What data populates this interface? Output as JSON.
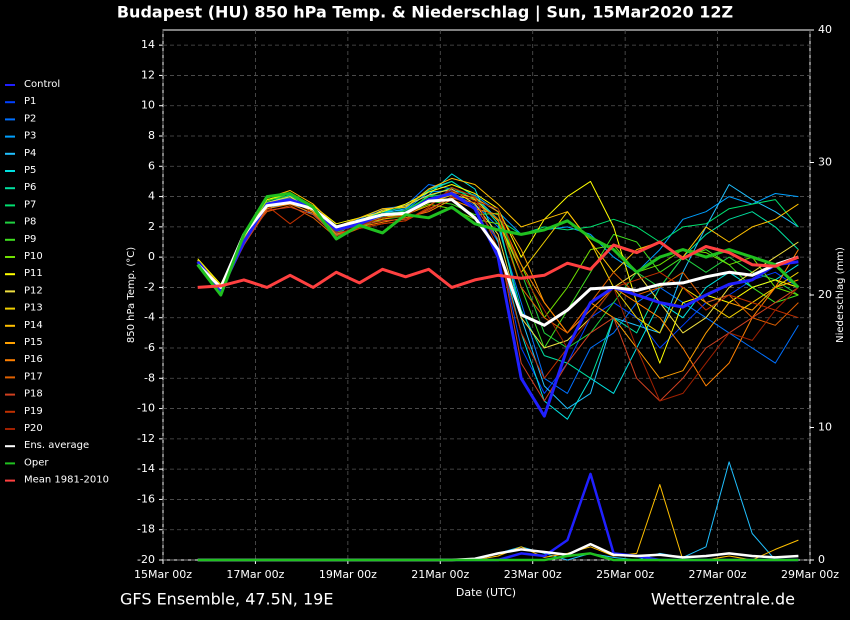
{
  "chart_data": {
    "type": "line",
    "title": "Budapest  (HU)  850 hPa Temp. & Niederschlag | Sun, 15Mar2020 12Z",
    "footer_left": "GFS Ensemble, 47.5N, 19E",
    "footer_right": "Wetterzentrale.de",
    "xlabel": "Date (UTC)",
    "ylabel": "850 hPa Temp. (°C)",
    "y2label": "Niederschlag (mm)",
    "grid": true,
    "xlim": [
      0,
      14
    ],
    "xticks": [
      {
        "value": 0,
        "label": "15Mar 00z"
      },
      {
        "value": 2,
        "label": "17Mar 00z"
      },
      {
        "value": 4,
        "label": "19Mar 00z"
      },
      {
        "value": 6,
        "label": "21Mar 00z"
      },
      {
        "value": 8,
        "label": "23Mar 00z"
      },
      {
        "value": 10,
        "label": "25Mar 00z"
      },
      {
        "value": 12,
        "label": "27Mar 00z"
      },
      {
        "value": 14,
        "label": "29Mar 00z"
      }
    ],
    "ylim": [
      -20,
      15
    ],
    "yticks": [
      -20,
      -18,
      -16,
      -14,
      -12,
      -10,
      -8,
      -6,
      -4,
      -2,
      0,
      2,
      4,
      6,
      8,
      10,
      12,
      14
    ],
    "y2lim": [
      0,
      40
    ],
    "y2ticks": [
      0,
      10,
      20,
      30,
      40
    ],
    "x": [
      0.75,
      1.25,
      1.75,
      2.25,
      2.75,
      3.25,
      3.75,
      4.25,
      4.75,
      5.25,
      5.75,
      6.25,
      6.75,
      7.25,
      7.75,
      8.25,
      8.75,
      9.25,
      9.75,
      10.25,
      10.75,
      11.25,
      11.75,
      12.25,
      12.75,
      13.25,
      13.75
    ],
    "series": [
      {
        "name": "Control",
        "color": "#2020ff",
        "bold": true,
        "values": [
          -0.3,
          -2.2,
          1,
          3.5,
          3.8,
          3.2,
          1.8,
          2.2,
          2.8,
          2.9,
          3.8,
          4.2,
          3.2,
          0,
          -8,
          -10.5,
          -6,
          -3,
          -2,
          -2.5,
          -3,
          -3.3,
          -2.5,
          -1.8,
          -1.5,
          -0.5,
          -0.3
        ],
        "precip": [
          0,
          0,
          0,
          0,
          0,
          0,
          0,
          0,
          0,
          0,
          0,
          0,
          0,
          0,
          0.5,
          0.3,
          1.5,
          6.5,
          0.5,
          0.3,
          0,
          0,
          0,
          0,
          0,
          0,
          0
        ]
      },
      {
        "name": "P1",
        "color": "#0040ff",
        "values": [
          -0.4,
          -2,
          1.2,
          3.6,
          3.9,
          3,
          1.6,
          2.4,
          2.7,
          3,
          3.6,
          4.3,
          3.4,
          1,
          -6,
          -9,
          -7,
          -4,
          -3,
          -4,
          -6,
          -4.5,
          -3,
          -2.5,
          -1.5,
          -1,
          -2
        ]
      },
      {
        "name": "P2",
        "color": "#0070ff",
        "values": [
          -0.2,
          -2.1,
          0.8,
          3.4,
          4,
          3.1,
          1.5,
          2.5,
          3.2,
          3.4,
          4.8,
          4.5,
          3.5,
          2,
          -3,
          -8,
          -9,
          -6,
          -5,
          -3,
          -2,
          -3,
          -4,
          -5,
          -6,
          -7,
          -4.5
        ]
      },
      {
        "name": "P3",
        "color": "#00a0ff",
        "values": [
          -0.3,
          -2.3,
          1.1,
          3.2,
          3.6,
          2.8,
          1.4,
          2.6,
          3,
          3.1,
          4.3,
          4.4,
          4.1,
          3,
          1.5,
          1.8,
          2,
          1.5,
          0,
          -1,
          0.5,
          2.5,
          3,
          4,
          3.5,
          4.2,
          4
        ]
      },
      {
        "name": "P4",
        "color": "#20c0ff",
        "values": [
          -0.5,
          -2,
          0.9,
          3.5,
          3.7,
          3.3,
          1.7,
          2.1,
          2.9,
          3.2,
          4.5,
          5,
          4,
          2.5,
          -4,
          -8.5,
          -10,
          -9,
          -4,
          -4.5,
          -5,
          -1,
          2,
          4.8,
          3.8,
          3,
          2
        ],
        "precip": [
          0,
          0,
          0,
          0,
          0,
          0,
          0,
          0,
          0,
          0,
          0,
          0,
          0,
          0.5,
          1,
          0.5,
          0,
          0.5,
          0.2,
          0,
          0.5,
          0.2,
          1,
          7.4,
          2,
          0,
          0
        ]
      },
      {
        "name": "P5",
        "color": "#00e0e0",
        "values": [
          -0.2,
          -1.9,
          1,
          3.3,
          3.8,
          3.1,
          1.6,
          2.3,
          2.8,
          2.9,
          4.1,
          5.5,
          4.5,
          1,
          -5,
          -9.5,
          -10.7,
          -8,
          -9,
          -6,
          -3,
          -4,
          -2,
          -1,
          -2,
          -1.5,
          -0.5
        ]
      },
      {
        "name": "P6",
        "color": "#00e0a0",
        "values": [
          -0.4,
          -2.2,
          1.3,
          3.6,
          4.1,
          3.2,
          2,
          2.4,
          3,
          3.3,
          4.4,
          5,
          4,
          2.2,
          -3.5,
          -6.5,
          -7,
          -8,
          -4,
          -5,
          -2,
          0,
          1.5,
          2.5,
          3,
          2,
          0.5
        ]
      },
      {
        "name": "P7",
        "color": "#00e070",
        "values": [
          -0.3,
          -2,
          1,
          3.5,
          3.8,
          3,
          1.6,
          2.3,
          2.9,
          3,
          4,
          4.6,
          3.8,
          2.5,
          1.5,
          2,
          1.8,
          2,
          2.5,
          2,
          1,
          2,
          2.2,
          3.2,
          3.5,
          3.8,
          2
        ]
      },
      {
        "name": "P8",
        "color": "#20d040",
        "values": [
          -0.2,
          -2.4,
          1,
          3.8,
          4,
          3.4,
          1.2,
          2,
          2.7,
          3.1,
          4,
          4.2,
          3.2,
          2.8,
          -1,
          -5,
          -6,
          -5,
          -3,
          -1,
          -2,
          0,
          -1,
          0,
          -1,
          -1.5,
          -2.5
        ]
      },
      {
        "name": "P9",
        "color": "#40e020",
        "values": [
          -0.3,
          -2.3,
          1.1,
          3.7,
          4.2,
          3.3,
          1.4,
          2,
          2.5,
          2.7,
          3.7,
          3.5,
          2.8,
          2.9,
          -2,
          -6,
          -3.5,
          -1,
          1.5,
          1,
          -1,
          0,
          0.5,
          -0.5,
          -2,
          -3,
          -2.5
        ]
      },
      {
        "name": "P10",
        "color": "#70e000",
        "values": [
          -0.4,
          -2.1,
          1.2,
          3.5,
          3.9,
          3.2,
          1.8,
          2.2,
          2.6,
          2.8,
          3.5,
          3.2,
          2.5,
          2.2,
          -0.5,
          -4,
          -2,
          0.5,
          0.8,
          -1,
          -0.5,
          0.5,
          0.3,
          -0.5,
          0,
          -2,
          -2.5
        ]
      },
      {
        "name": "P11",
        "color": "#ffff00",
        "values": [
          -0.1,
          -1.8,
          1.4,
          3.8,
          4.2,
          3.4,
          2.2,
          2.6,
          3,
          3.5,
          4.3,
          4.8,
          4.2,
          3.2,
          0,
          2.5,
          4,
          5,
          2,
          -3,
          -7,
          -3,
          -2.5,
          -3,
          -2,
          -1.5,
          -2
        ]
      },
      {
        "name": "P12",
        "color": "#f0e040",
        "values": [
          -0.2,
          -2,
          1.1,
          3.6,
          4,
          3,
          1.8,
          2.4,
          3.1,
          3.4,
          4.1,
          4.5,
          3.5,
          1.5,
          -4,
          -6,
          -5.5,
          -4,
          -2,
          -1,
          -3,
          -5,
          -4,
          -2,
          -1,
          0,
          1
        ]
      },
      {
        "name": "P13",
        "color": "#f0d000",
        "values": [
          -0.3,
          -2.1,
          1,
          3.3,
          3.6,
          3.1,
          1.9,
          2.3,
          2.6,
          2.9,
          3.6,
          4.1,
          3.8,
          2.4,
          -1,
          1,
          3,
          1,
          -2,
          -4,
          -5,
          -2,
          -3,
          -4,
          -3,
          -2,
          -1
        ]
      },
      {
        "name": "P14",
        "color": "#ffc000",
        "values": [
          -0.2,
          -1.9,
          1.2,
          3.9,
          4.4,
          3.5,
          2,
          2.6,
          3.2,
          3.3,
          4.5,
          5.2,
          4.8,
          3.5,
          2,
          2.5,
          3,
          1,
          -1,
          0.5,
          1,
          0,
          2,
          1,
          2,
          2.5,
          3.5
        ],
        "precip": [
          0,
          0,
          0,
          0,
          0,
          0,
          0,
          0,
          0,
          0,
          0,
          0,
          0,
          0.3,
          1,
          0.2,
          0.5,
          1,
          0.3,
          0.5,
          5.7,
          0,
          0,
          0.3,
          0,
          0.8,
          1.5
        ]
      },
      {
        "name": "P15",
        "color": "#ffa000",
        "values": [
          -0.3,
          -2,
          0.9,
          3.4,
          3.7,
          3,
          1.7,
          2.2,
          2.5,
          2.8,
          3.4,
          4.3,
          3.9,
          3,
          0.5,
          -3,
          -5,
          -3,
          -4,
          -6,
          -8,
          -7.5,
          -5,
          -3,
          -3.5,
          -2,
          -1.5
        ]
      },
      {
        "name": "P16",
        "color": "#ff8000",
        "values": [
          -0.4,
          -2.2,
          1,
          3.2,
          3.5,
          2.9,
          1.5,
          2,
          2.3,
          2.6,
          3,
          3.8,
          3.2,
          2.8,
          -0.5,
          -3,
          -5,
          -3.5,
          -2,
          -3,
          -4,
          -6,
          -8.5,
          -7,
          -4,
          -2,
          0.5
        ]
      },
      {
        "name": "P17",
        "color": "#e06000",
        "values": [
          -0.3,
          -2,
          1.2,
          3,
          3.4,
          2.6,
          1.3,
          1.9,
          2.2,
          2.4,
          3.2,
          3.9,
          3.6,
          2.5,
          -2,
          -4,
          -5,
          -3,
          -1,
          -2.5,
          -2,
          -1,
          -3,
          -2.5,
          -4,
          -4.5,
          -3
        ]
      },
      {
        "name": "P18",
        "color": "#d04020",
        "values": [
          -0.5,
          -2.3,
          0.8,
          3.1,
          3.3,
          2.8,
          1.4,
          2.1,
          2.4,
          2.5,
          3.1,
          4,
          3.3,
          1.2,
          -7,
          -9.5,
          -7,
          -5,
          -4,
          -8,
          -9.5,
          -8,
          -6,
          -5,
          -4,
          -3,
          -2
        ]
      },
      {
        "name": "P19",
        "color": "#c03000",
        "values": [
          -0.4,
          -2.1,
          1,
          3.4,
          2.2,
          3.3,
          1.6,
          1.9,
          2.2,
          2.4,
          3.3,
          4.6,
          4,
          0.5,
          -5,
          -8,
          -6,
          -3,
          -2,
          -1.5,
          -1,
          -2,
          -3.5,
          -2.5,
          -3,
          -3.5,
          -4
        ]
      },
      {
        "name": "P20",
        "color": "#a02000",
        "values": [
          -0.3,
          -2.2,
          1.1,
          3.3,
          3.7,
          3.2,
          1.7,
          2.1,
          2.6,
          2.7,
          3.7,
          4.4,
          3.7,
          3.2,
          -1,
          -3.5,
          -6,
          -4,
          -2,
          -6,
          -9.5,
          -9,
          -7,
          -5,
          -5.5,
          -3.5,
          -2
        ]
      },
      {
        "name": "Ens. average",
        "color": "#ffffff",
        "bold": true,
        "values": [
          -0.5,
          -2,
          1.5,
          3.4,
          3.6,
          3.2,
          2,
          2.4,
          2.8,
          2.9,
          3.7,
          3.8,
          2.6,
          0.5,
          -3.8,
          -4.5,
          -3.5,
          -2.1,
          -2,
          -2.2,
          -1.8,
          -1.7,
          -1.3,
          -1,
          -1.2,
          -0.5,
          0
        ],
        "precip": [
          0,
          0,
          0,
          0,
          0,
          0,
          0,
          0,
          0,
          0,
          0,
          0,
          0.1,
          0.5,
          0.8,
          0.6,
          0.4,
          1.2,
          0.4,
          0.3,
          0.4,
          0.2,
          0.3,
          0.5,
          0.3,
          0.2,
          0.3
        ]
      },
      {
        "name": "Oper",
        "color": "#20c020",
        "bold": true,
        "values": [
          -0.5,
          -2.5,
          1.5,
          4,
          4.2,
          3.3,
          1.2,
          2.1,
          1.6,
          2.8,
          2.6,
          3.3,
          2.2,
          1.8,
          1.5,
          1.8,
          2.4,
          1.3,
          0.5,
          -1,
          0,
          0.5,
          0,
          0.5,
          0,
          -0.5,
          -2
        ],
        "precip": [
          0,
          0,
          0,
          0,
          0,
          0,
          0,
          0,
          0,
          0,
          0,
          0,
          0,
          0,
          0,
          0,
          0.3,
          0.5,
          0,
          0,
          0,
          0,
          0,
          0,
          0,
          0,
          0
        ]
      },
      {
        "name": "Mean 1981-2010",
        "color": "#ff4040",
        "bold": true,
        "values": [
          -2,
          -1.9,
          -1.5,
          -2,
          -1.2,
          -2,
          -1,
          -1.7,
          -0.8,
          -1.3,
          -0.8,
          -2,
          -1.5,
          -1.2,
          -1.4,
          -1.2,
          -0.4,
          -0.8,
          0.8,
          0.3,
          1,
          -0.1,
          0.7,
          0.3,
          -0.5,
          -0.6,
          0
        ]
      }
    ]
  }
}
